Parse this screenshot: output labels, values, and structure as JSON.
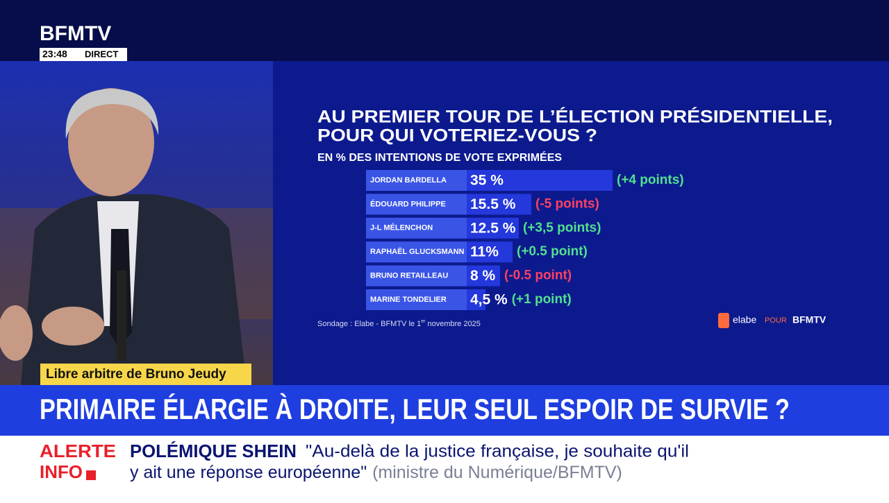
{
  "header": {
    "logo": "BFMTV",
    "time": "23:48",
    "live": "DIRECT"
  },
  "caption": "Libre arbitre de Bruno Jeudy",
  "chart_data": {
    "type": "bar",
    "orientation": "horizontal",
    "title": [
      "AU PREMIER TOUR DE L’ÉLECTION PRÉSIDENTIELLE,",
      "POUR QUI VOTERIEZ-VOUS ?"
    ],
    "subtitle": "EN % DES INTENTIONS DE VOTE EXPRIMÉES",
    "categories": [
      "JORDAN BARDELLA",
      "ÉDOUARD PHILIPPE",
      "J-L MÉLENCHON",
      "RAPHAËL GLUCKSMANN",
      "BRUNO RETAILLEAU",
      "MARINE TONDELIER"
    ],
    "values": [
      35,
      15.5,
      12.5,
      11,
      8,
      4.5
    ],
    "value_labels": [
      "35 %",
      "15.5 %",
      "12.5 %",
      "11%",
      "8 %",
      "4,5 %"
    ],
    "change_labels": [
      "(+4 points)",
      "(-5 points)",
      "(+3,5 points)",
      "(+0.5 point)",
      "(-0.5 point)",
      "(+1 point)"
    ],
    "change_colors": [
      "#52e08e",
      "#ff4060",
      "#52e08e",
      "#52e08e",
      "#ff4060",
      "#52e08e"
    ],
    "color": "#2438dc",
    "label_box_color": "#3a55e6",
    "source": {
      "text": "Sondage : Elabe - BFMTV  le 1",
      "sup": "er",
      "rest": " novembre 2025"
    },
    "logo": {
      "brand": "elabe",
      "pour": "POUR",
      "channel": "BFMTV"
    }
  },
  "headline": "PRIMAIRE ÉLARGIE À DROITE, LEUR SEUL ESPOIR DE SURVIE ?",
  "ticker": {
    "alert": [
      "ALERTE",
      "INFO"
    ],
    "topic": "POLÉMIQUE SHEIN",
    "quote": [
      "\"Au-delà de la justice française, je souhaite qu'il",
      "y ait une réponse européenne\""
    ],
    "attribution": "(ministre du Numérique/BFMTV)"
  }
}
